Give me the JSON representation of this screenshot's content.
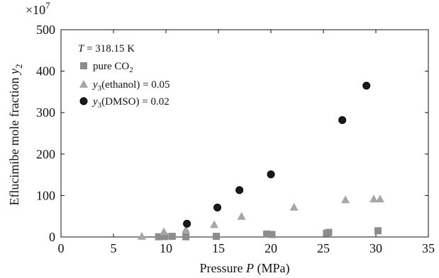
{
  "chart_data": {
    "type": "scatter",
    "multiplier": "×10",
    "multiplier_exp": "7",
    "xlabel": {
      "prefix": "Pressure ",
      "var": "P",
      "suffix": " (MPa)"
    },
    "ylabel": {
      "prefix": "Eflucimibe mole fraction ",
      "var": "y",
      "sub": "2"
    },
    "xlim": [
      0,
      35
    ],
    "ylim": [
      0,
      500
    ],
    "xticks": [
      0,
      5,
      10,
      15,
      20,
      25,
      30,
      35
    ],
    "yticks": [
      0,
      100,
      200,
      300,
      400,
      500
    ],
    "annotation": {
      "var": "T",
      "text": " = 318.15 K"
    },
    "legend_position": "top-left",
    "series": [
      {
        "legend": {
          "main": "pure CO",
          "sub": "2",
          "rest": ""
        },
        "marker": "square",
        "color": "#8c8c8c",
        "x": [
          9.3,
          9.9,
          10.6,
          11.9,
          14.8,
          19.6,
          20.1,
          25.3,
          25.5,
          30.2
        ],
        "y": [
          0.5,
          1.0,
          1.5,
          0.5,
          1.5,
          7,
          6,
          9,
          11,
          15
        ]
      },
      {
        "legend": {
          "var": "y",
          "sub": "3",
          "rest": "(ethanol) = 0.05"
        },
        "marker": "triangle",
        "color": "#a6a6a6",
        "x": [
          7.7,
          9.8,
          11.9,
          14.6,
          17.2,
          22.2,
          27.1,
          29.8,
          30.4
        ],
        "y": [
          2,
          13,
          18,
          30,
          50,
          72,
          90,
          92,
          92
        ]
      },
      {
        "legend": {
          "var": "y",
          "sub": "3",
          "rest": "(DMSO) = 0.02"
        },
        "marker": "circle",
        "color": "#1a1a1a",
        "x": [
          12.0,
          14.9,
          17.0,
          20.0,
          26.8,
          29.1
        ],
        "y": [
          32,
          71,
          113,
          151,
          282,
          365
        ]
      }
    ]
  }
}
